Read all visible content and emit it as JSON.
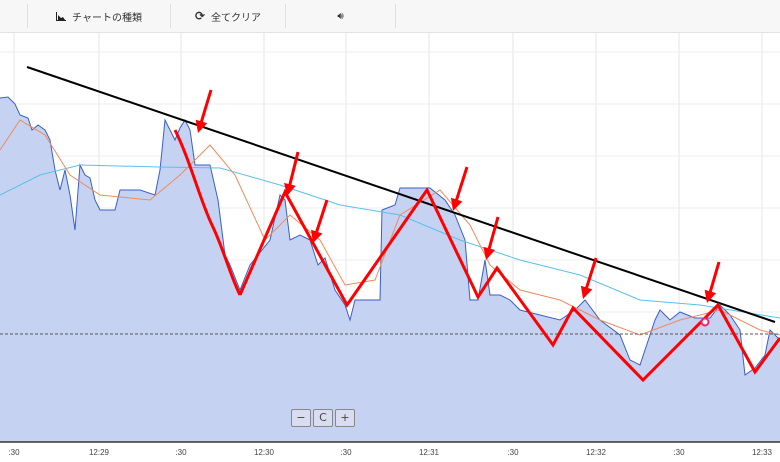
{
  "toolbar": {
    "chart_type_label": "チャートの種類",
    "chart_type_icon": "area-chart-icon",
    "clear_all_label": "全てクリア",
    "clear_icon": "refresh-icon",
    "sound_icon": "speaker-icon"
  },
  "x_axis": {
    "labels": [
      ":30",
      "12:29",
      ":30",
      "12:30",
      ":30",
      "12:31",
      ":30",
      "12:32",
      ":30",
      "12:33"
    ]
  },
  "zoom_controls": {
    "zoom_out": "−",
    "reset": "C",
    "zoom_in": "+"
  },
  "colors": {
    "area_fill": "#c6d2f2",
    "price_line": "#3a5fc8",
    "ma_fast": "#f08a5d",
    "ma_slow": "#5bc0eb",
    "annotation": "#ff0000",
    "trendline": "#000000"
  }
}
